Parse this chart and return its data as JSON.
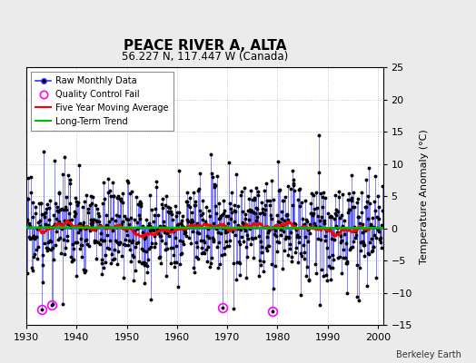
{
  "title": "PEACE RIVER A, ALTA",
  "subtitle": "56.227 N, 117.447 W (Canada)",
  "ylabel": "Temperature Anomaly (°C)",
  "credit": "Berkeley Earth",
  "ylim": [
    -15,
    25
  ],
  "yticks": [
    -15,
    -10,
    -5,
    0,
    5,
    10,
    15,
    20,
    25
  ],
  "xlim": [
    1930,
    2001
  ],
  "xticks": [
    1930,
    1940,
    1950,
    1960,
    1970,
    1980,
    1990,
    2000
  ],
  "background_color": "#ebebeb",
  "plot_bg_color": "#ffffff",
  "raw_line_color": "#3333ff",
  "raw_marker_color": "#000000",
  "ma_color": "#ff0000",
  "trend_color": "#00bb00",
  "qc_fail_color": "#ff00ff",
  "seed": 17,
  "n_years": 71,
  "start_year": 1930,
  "qc_fail_indices": [
    36,
    60,
    468,
    588
  ],
  "ma_window": 60
}
